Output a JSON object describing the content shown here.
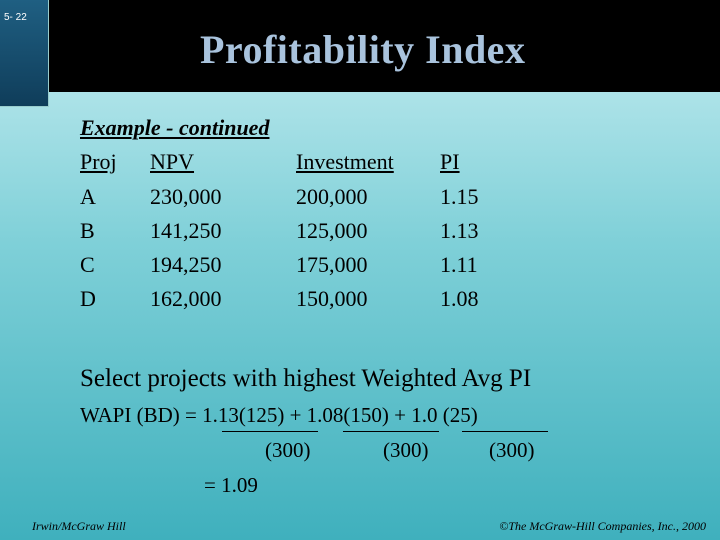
{
  "slide_number": "5- 22",
  "title": "Profitability Index",
  "subheading": "Example - continued",
  "table": {
    "headers": [
      "Proj",
      "NPV",
      "Investment",
      "PI"
    ],
    "rows": [
      [
        "A",
        "230,000",
        "200,000",
        "1.15"
      ],
      [
        "B",
        "141,250",
        "125,000",
        "1.13"
      ],
      [
        "C",
        "194,250",
        "175,000",
        "1.11"
      ],
      [
        "D",
        "162,000",
        "150,000",
        "1.08"
      ]
    ]
  },
  "instruction": "Select projects with highest Weighted Avg PI",
  "formula": {
    "line1": "WAPI (BD) = 1.13(125) + 1.08(150) + 1.0 (25)",
    "denominators": [
      "(300)",
      "(300)",
      "(300)"
    ],
    "result": "= 1.09"
  },
  "footer": {
    "left": "Irwin/McGraw Hill",
    "right": "©The McGraw-Hill Companies, Inc., 2000"
  }
}
